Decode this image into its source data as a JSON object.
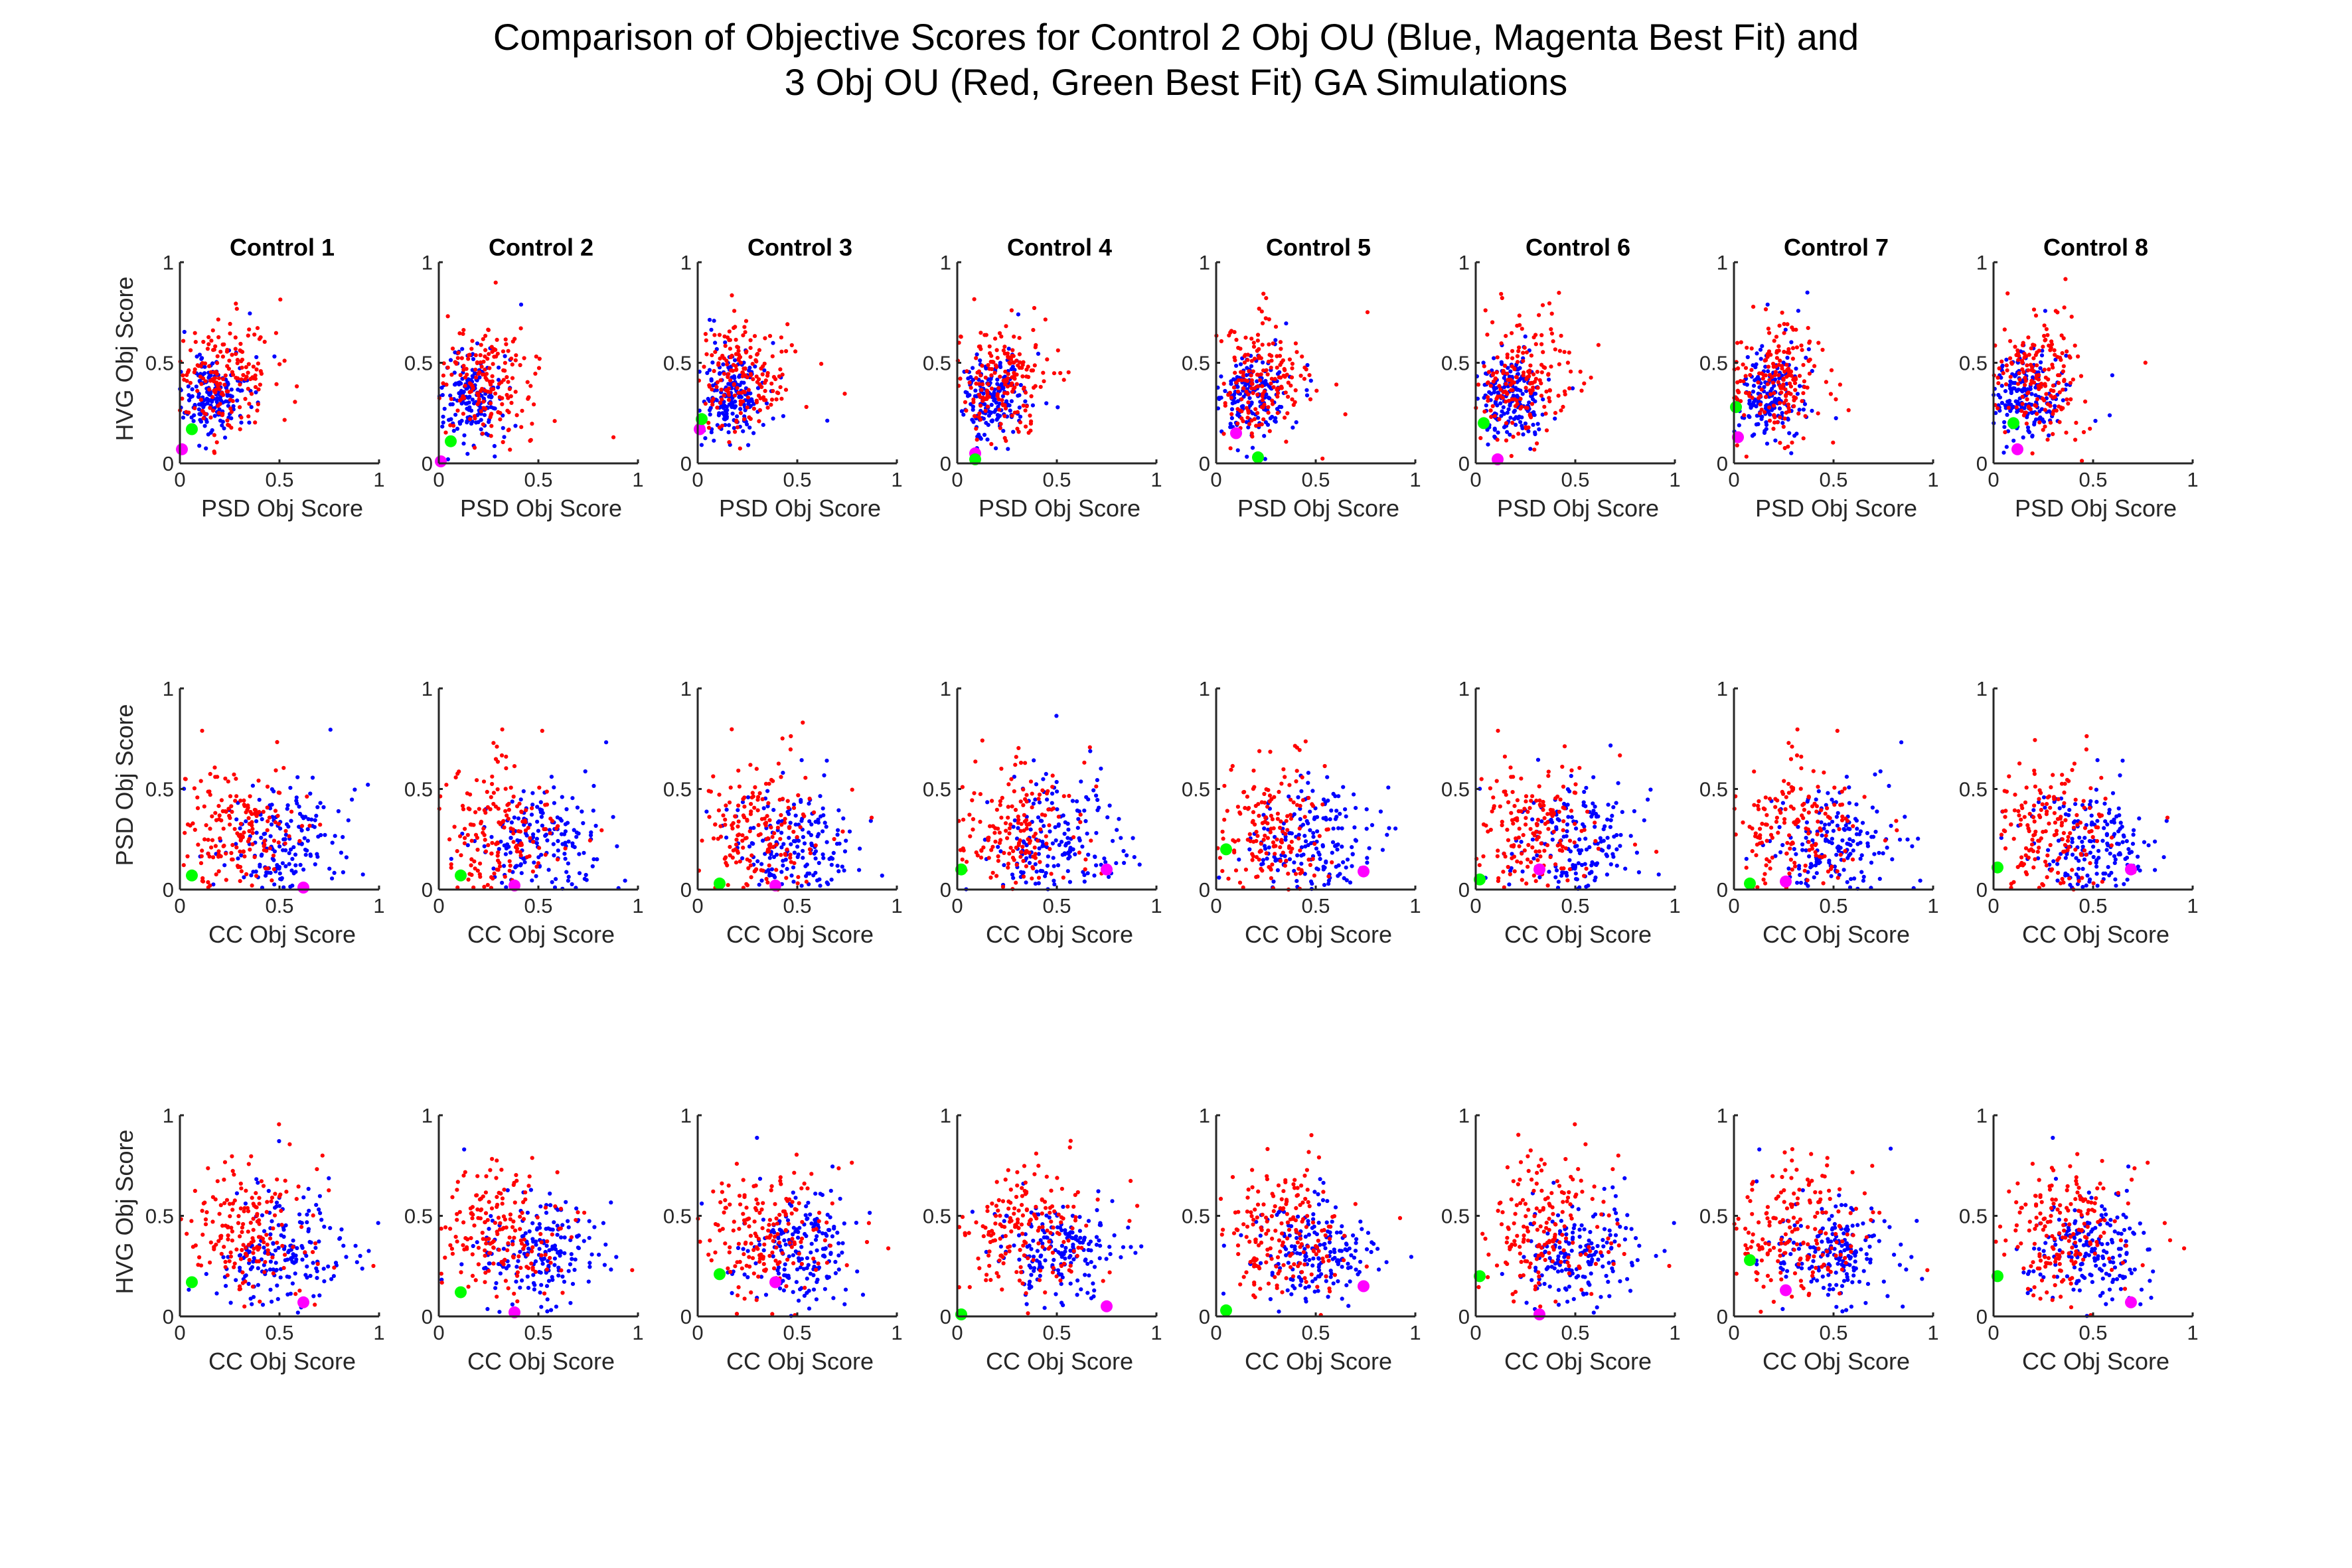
{
  "title": {
    "line1": "Comparison of Objective Scores for Control 2 Obj OU (Blue, Magenta Best Fit) and",
    "line2": "3 Obj OU (Red, Green Best Fit) GA Simulations"
  },
  "colors": {
    "blue": "#0000ff",
    "red": "#ff0000",
    "magenta": "#ff00ff",
    "green": "#00ff00"
  },
  "chart_data": {
    "type": "scatter",
    "grid": false,
    "xlim": [
      0,
      1
    ],
    "ylim": [
      0,
      1
    ],
    "ticks": [
      0,
      0.5,
      1
    ],
    "tick_labels": [
      "0",
      "0.5",
      "1"
    ],
    "column_titles": [
      "Control 1",
      "Control 2",
      "Control 3",
      "Control 4",
      "Control 5",
      "Control 6",
      "Control 7",
      "Control 8"
    ],
    "rows": [
      {
        "xlabel": "PSD Obj Score",
        "ylabel": "HVG Obj Score",
        "cloud": {
          "blue": {
            "cx": 0.17,
            "cy": 0.33,
            "sx": 0.08,
            "sy": 0.1
          },
          "red": {
            "cx": 0.22,
            "cy": 0.42,
            "sx": 0.12,
            "sy": 0.14
          }
        },
        "best_fit": {
          "magenta": [
            [
              0.01,
              0.07
            ],
            [
              0.01,
              0.01
            ],
            [
              0.01,
              0.17
            ],
            [
              0.09,
              0.05
            ],
            [
              0.1,
              0.15
            ],
            [
              0.11,
              0.02
            ],
            [
              0.02,
              0.13
            ],
            [
              0.12,
              0.07
            ]
          ],
          "green": [
            [
              0.06,
              0.17
            ],
            [
              0.06,
              0.11
            ],
            [
              0.02,
              0.22
            ],
            [
              0.09,
              0.02
            ],
            [
              0.21,
              0.03
            ],
            [
              0.04,
              0.2
            ],
            [
              0.01,
              0.28
            ],
            [
              0.1,
              0.2
            ]
          ]
        }
      },
      {
        "xlabel": "CC Obj Score",
        "ylabel": "PSD Obj Score",
        "cloud": {
          "blue": {
            "cx": 0.5,
            "cy": 0.22,
            "sx": 0.15,
            "sy": 0.14
          },
          "red": {
            "cx": 0.28,
            "cy": 0.28,
            "sx": 0.15,
            "sy": 0.18
          }
        },
        "best_fit": {
          "magenta": [
            [
              0.62,
              0.01
            ],
            [
              0.38,
              0.02
            ],
            [
              0.39,
              0.02
            ],
            [
              0.75,
              0.1
            ],
            [
              0.74,
              0.09
            ],
            [
              0.32,
              0.1
            ],
            [
              0.26,
              0.04
            ],
            [
              0.69,
              0.1
            ]
          ],
          "green": [
            [
              0.06,
              0.07
            ],
            [
              0.11,
              0.07
            ],
            [
              0.11,
              0.03
            ],
            [
              0.02,
              0.1
            ],
            [
              0.05,
              0.2
            ],
            [
              0.02,
              0.05
            ],
            [
              0.08,
              0.03
            ],
            [
              0.02,
              0.11
            ]
          ]
        }
      },
      {
        "xlabel": "CC Obj Score",
        "ylabel": "HVG Obj Score",
        "cloud": {
          "blue": {
            "cx": 0.5,
            "cy": 0.32,
            "sx": 0.15,
            "sy": 0.12
          },
          "red": {
            "cx": 0.33,
            "cy": 0.42,
            "sx": 0.15,
            "sy": 0.16
          }
        },
        "best_fit": {
          "magenta": [
            [
              0.62,
              0.07
            ],
            [
              0.38,
              0.02
            ],
            [
              0.39,
              0.17
            ],
            [
              0.75,
              0.05
            ],
            [
              0.74,
              0.15
            ],
            [
              0.32,
              0.01
            ],
            [
              0.26,
              0.13
            ],
            [
              0.69,
              0.07
            ]
          ],
          "green": [
            [
              0.06,
              0.17
            ],
            [
              0.11,
              0.12
            ],
            [
              0.11,
              0.21
            ],
            [
              0.02,
              0.01
            ],
            [
              0.05,
              0.03
            ],
            [
              0.02,
              0.2
            ],
            [
              0.08,
              0.28
            ],
            [
              0.02,
              0.2
            ]
          ]
        }
      }
    ]
  }
}
